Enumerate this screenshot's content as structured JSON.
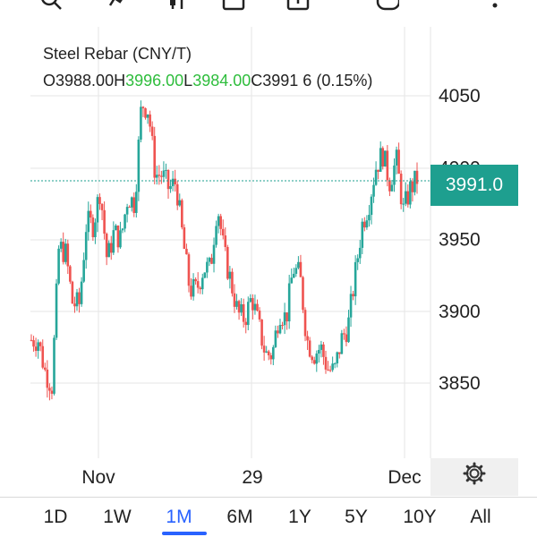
{
  "toolbar": {
    "icons": [
      "search-icon",
      "indicators-icon",
      "compare-icon",
      "save-icon",
      "share-icon",
      "alert-icon",
      "more-icon"
    ]
  },
  "legend": {
    "title": "Steel Rebar (CNY/T)",
    "open_label": "O",
    "open": "3988.00",
    "high_label": "H",
    "high": "3996.00",
    "low_label": "L",
    "low": "3984.00",
    "close_label": "C",
    "close": "3991 6",
    "change": "(0.15%)"
  },
  "price_axis": {
    "ticks": [
      "4050",
      "4000",
      "3950",
      "3900",
      "3850"
    ],
    "current_price": "3991.0"
  },
  "time_axis": {
    "ticks": [
      "Nov",
      "29",
      "Dec"
    ]
  },
  "tabs": {
    "items": [
      "1D",
      "1W",
      "1M",
      "6M",
      "1Y",
      "5Y",
      "10Y",
      "All"
    ],
    "active": "1M"
  },
  "colors": {
    "up": "#26a69a",
    "down": "#ef5350",
    "accent": "#2962ff",
    "price_badge": "#1e9f8f"
  },
  "chart_data": {
    "type": "candlestick",
    "title": "Steel Rebar (CNY/T)",
    "ylim": [
      3830,
      4070
    ],
    "y_ticks": [
      3850,
      3900,
      3950,
      4000,
      4050
    ],
    "x_ticks": [
      "Nov",
      "29",
      "Dec"
    ],
    "last_price": 3991.0,
    "close_path": [
      3880,
      3880,
      3858,
      3848,
      3945,
      3940,
      3905,
      3905,
      3962,
      3960,
      3985,
      3935,
      3955,
      3950,
      3980,
      3975,
      4045,
      4040,
      3995,
      3995,
      3985,
      3990,
      3950,
      3915,
      3915,
      3930,
      3930,
      3975,
      3940,
      3920,
      3898,
      3895,
      3910,
      3890,
      3870,
      3870,
      3900,
      3895,
      3930,
      3925,
      3880,
      3870,
      3875,
      3860,
      3858,
      3880,
      3890,
      3925,
      3960,
      3975,
      4000,
      4010,
      3990,
      4005,
      3970,
      3985,
      3992
    ]
  }
}
